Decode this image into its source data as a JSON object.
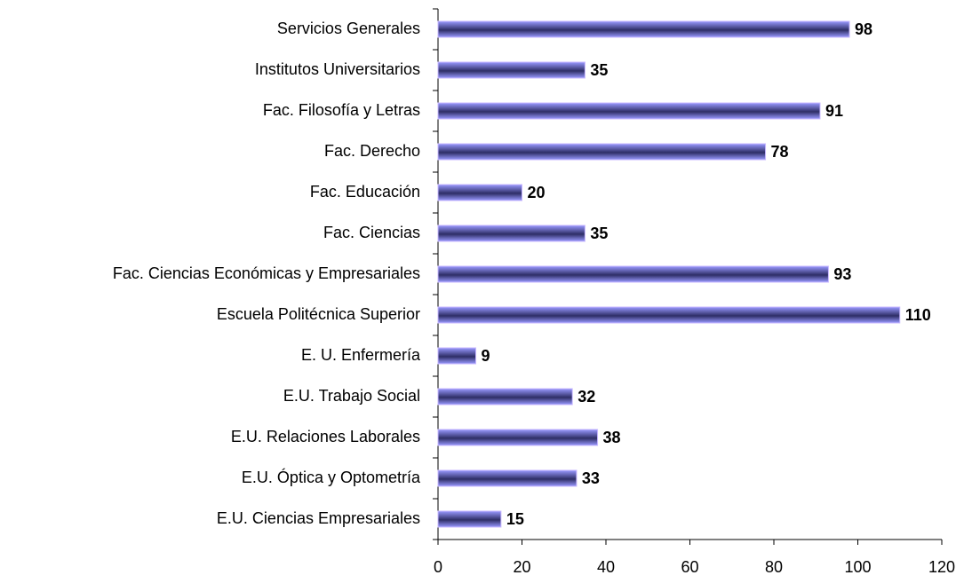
{
  "chart_data": {
    "type": "hbar",
    "categories": [
      "Servicios Generales",
      "Institutos Universitarios",
      "Fac. Filosofía y Letras",
      "Fac. Derecho",
      "Fac. Educación",
      "Fac. Ciencias",
      "Fac. Ciencias Económicas y Empresariales",
      "Escuela Politécnica Superior",
      "E. U. Enfermería",
      "E.U. Trabajo Social",
      "E.U. Relaciones Laborales",
      "E.U. Óptica y Optometría",
      "E.U. Ciencias Empresariales"
    ],
    "values": [
      98,
      35,
      91,
      78,
      20,
      35,
      93,
      110,
      9,
      32,
      38,
      33,
      15
    ],
    "color": "#9999ff",
    "xlim": [
      0,
      120
    ],
    "xticks": [
      0,
      20,
      40,
      60,
      80,
      100,
      120
    ],
    "grid": false
  }
}
